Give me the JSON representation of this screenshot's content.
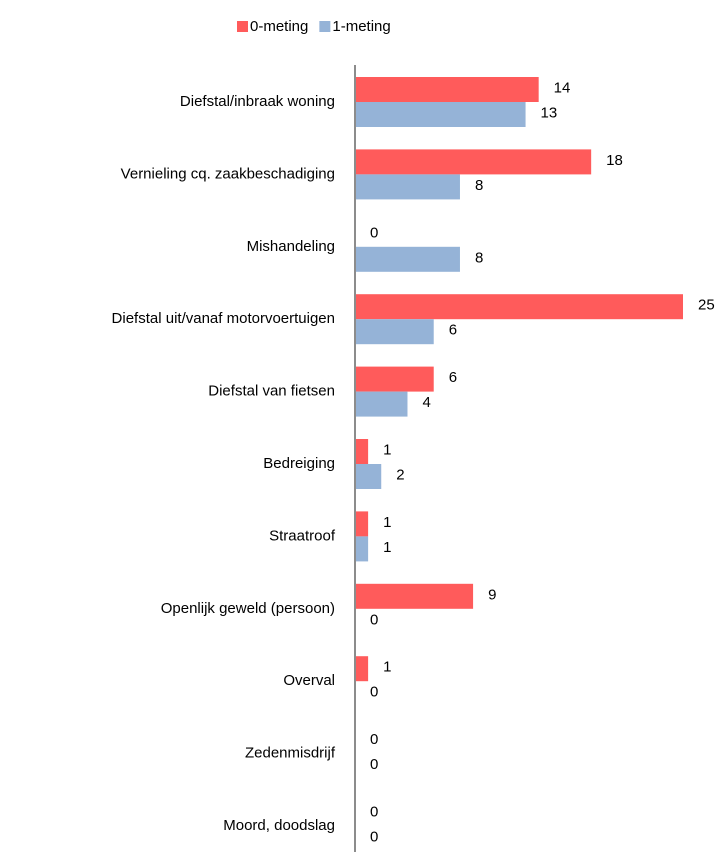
{
  "chart_data": {
    "type": "hbar",
    "categories": [
      "Diefstal/inbraak woning",
      "Vernieling cq. zaakbeschadiging",
      "Mishandeling",
      "Diefstal uit/vanaf motorvoertuigen",
      "Diefstal van fietsen",
      "Bedreiging",
      "Straatroof",
      "Openlijk geweld (persoon)",
      "Overval",
      "Zedenmisdrijf",
      "Moord, doodslag"
    ],
    "series": [
      {
        "name": "0-meting",
        "color": "#ff5b5b",
        "values": [
          14,
          18,
          0,
          25,
          6,
          1,
          1,
          9,
          1,
          0,
          0
        ]
      },
      {
        "name": "1-meting",
        "color": "#95b3d7",
        "values": [
          13,
          8,
          8,
          6,
          4,
          2,
          1,
          0,
          0,
          0,
          0
        ]
      }
    ],
    "xlim": [
      0,
      25
    ]
  }
}
